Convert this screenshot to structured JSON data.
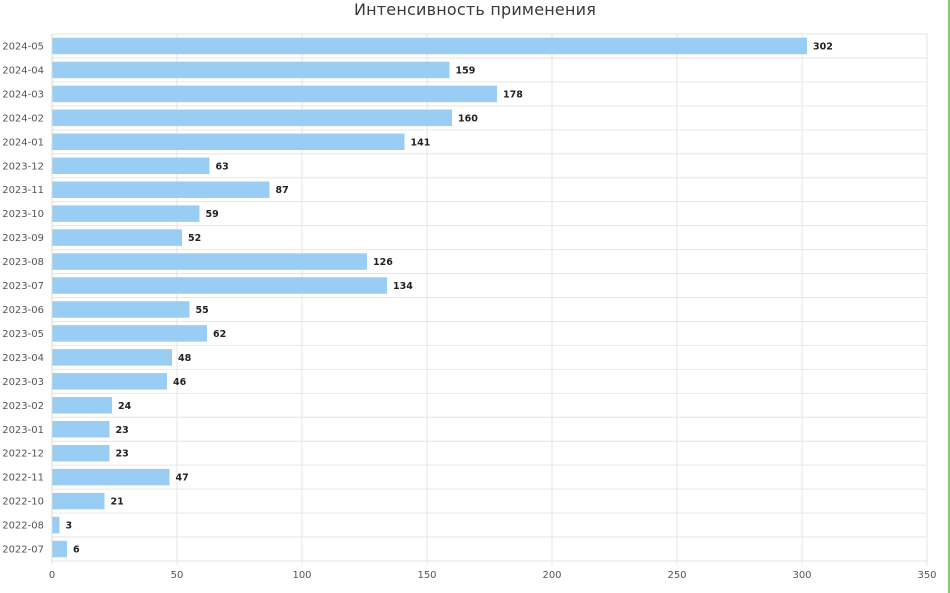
{
  "chart_data": {
    "type": "bar",
    "orientation": "horizontal",
    "title": "Интенсивность применения",
    "xlabel": "",
    "ylabel": "",
    "xlim": [
      0,
      350
    ],
    "x_ticks": [
      "0",
      "50",
      "100",
      "150",
      "200",
      "250",
      "300",
      "350"
    ],
    "grid": true,
    "legend": "none",
    "bar_color": "#99cdf4",
    "categories": [
      "2024-05",
      "2024-04",
      "2024-03",
      "2024-02",
      "2024-01",
      "2023-12",
      "2023-11",
      "2023-10",
      "2023-09",
      "2023-08",
      "2023-07",
      "2023-06",
      "2023-05",
      "2023-04",
      "2023-03",
      "2023-02",
      "2023-01",
      "2022-12",
      "2022-11",
      "2022-10",
      "2022-08",
      "2022-07"
    ],
    "values": [
      302,
      159,
      178,
      160,
      141,
      63,
      87,
      59,
      52,
      126,
      134,
      55,
      62,
      48,
      46,
      24,
      23,
      23,
      47,
      21,
      3,
      6
    ],
    "data_labels": [
      "302",
      "159",
      "178",
      "160",
      "141",
      "63",
      "87",
      "59",
      "52",
      "126",
      "134",
      "55",
      "62",
      "48",
      "46",
      "24",
      "23",
      "23",
      "47",
      "21",
      "3",
      "6"
    ]
  }
}
